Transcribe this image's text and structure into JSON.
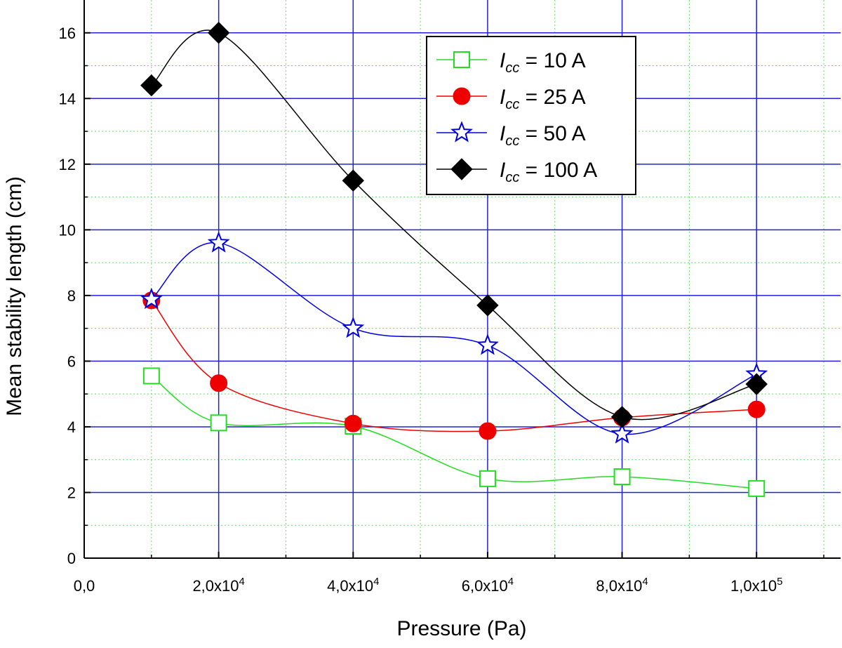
{
  "chart_data": {
    "type": "line",
    "xlabel": "Pressure (Pa)",
    "ylabel": "Mean stability length (cm)",
    "xlim": [
      0,
      112500
    ],
    "ylim": [
      0,
      17
    ],
    "x_ticks": [
      {
        "value": 0,
        "mantissa": "0,0",
        "exp": ""
      },
      {
        "value": 20000,
        "mantissa": "2,0x10",
        "exp": "4"
      },
      {
        "value": 40000,
        "mantissa": "4,0x10",
        "exp": "4"
      },
      {
        "value": 60000,
        "mantissa": "6,0x10",
        "exp": "4"
      },
      {
        "value": 80000,
        "mantissa": "8,0x10",
        "exp": "4"
      },
      {
        "value": 100000,
        "mantissa": "1,0x10",
        "exp": "5"
      }
    ],
    "y_ticks": [
      "0",
      "2",
      "4",
      "6",
      "8",
      "10",
      "12",
      "14",
      "16"
    ],
    "grid": "major blue solid, minor green dotted",
    "legend_position": "top-right",
    "x": [
      10000,
      20000,
      40000,
      60000,
      80000,
      100000
    ],
    "series": [
      {
        "symbol": "I",
        "subscript": "cc",
        "value_text": "= 10 A",
        "color": "#22dd22",
        "marker": "open-square",
        "values": [
          5.55,
          4.12,
          4.02,
          2.42,
          2.48,
          2.12
        ]
      },
      {
        "symbol": "I",
        "subscript": "cc",
        "value_text": "= 25 A",
        "color": "#ee0000",
        "marker": "filled-circle",
        "values": [
          7.85,
          5.33,
          4.1,
          3.87,
          4.28,
          4.53
        ]
      },
      {
        "symbol": "I",
        "subscript": "cc",
        "value_text": "= 50 A",
        "color": "#0000dd",
        "marker": "open-star",
        "values": [
          7.88,
          9.6,
          7.0,
          6.48,
          3.78,
          5.6
        ]
      },
      {
        "symbol": "I",
        "subscript": "cc",
        "value_text": "= 100 A",
        "color": "#000000",
        "marker": "filled-diamond",
        "values": [
          14.4,
          16.0,
          11.5,
          7.7,
          4.3,
          5.3
        ]
      }
    ]
  }
}
